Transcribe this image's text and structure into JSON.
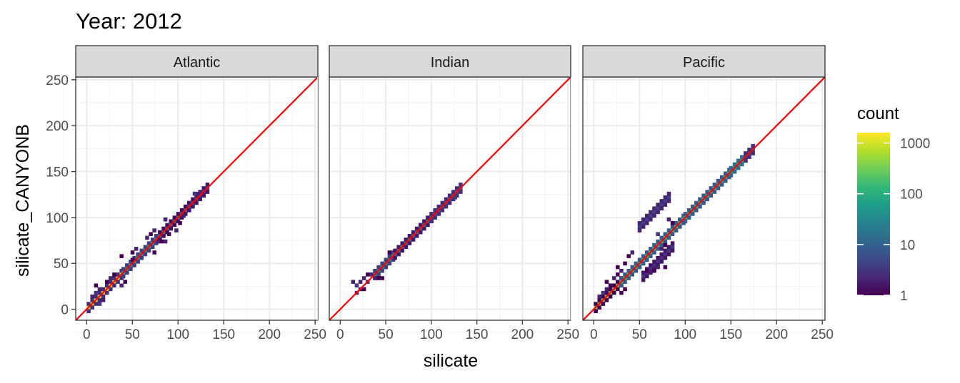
{
  "chart_data": {
    "type": "heatmap",
    "title": "Year: 2012",
    "xlabel": "silicate",
    "ylabel": "silicate_CANYONB",
    "xlim": [
      -12,
      253
    ],
    "ylim": [
      -12,
      253
    ],
    "x_ticks": [
      0,
      50,
      100,
      150,
      200,
      250
    ],
    "y_ticks": [
      0,
      50,
      100,
      150,
      200,
      250
    ],
    "grid": true,
    "reference_line": {
      "type": "identity",
      "color": "#ff0000"
    },
    "bin_width": 4,
    "legend": {
      "title": "count",
      "position": "right",
      "scale": "log10",
      "breaks": [
        1,
        10,
        100,
        1000
      ],
      "break_labels": [
        "1",
        "10",
        "100",
        "1000"
      ],
      "max": 1600,
      "colormap": "viridis",
      "colors": [
        "#440154",
        "#482878",
        "#3e4a89",
        "#31688e",
        "#26828e",
        "#1f9e89",
        "#35b779",
        "#6ece58",
        "#b5de2b",
        "#fde725"
      ]
    },
    "panels": [
      {
        "name": "Atlantic",
        "segments": [
          {
            "x0": 2,
            "x1": 40,
            "off": 0,
            "count": 800,
            "decay": 2.5
          },
          {
            "x0": 40,
            "x1": 80,
            "off": 0,
            "count": 60,
            "decay": 1.2
          },
          {
            "x0": 80,
            "x1": 112,
            "off": 0,
            "count": 20,
            "decay": 1.2
          },
          {
            "x0": 112,
            "x1": 132,
            "off": 0,
            "count": 5,
            "decay": 0.5
          }
        ],
        "scatter": [
          {
            "x": 6,
            "y": 14,
            "c": 2
          },
          {
            "x": 10,
            "y": 18,
            "c": 3
          },
          {
            "x": 14,
            "y": 22,
            "c": 2
          },
          {
            "x": 10,
            "y": 26,
            "c": 1
          },
          {
            "x": 14,
            "y": 6,
            "c": 3
          },
          {
            "x": 18,
            "y": 10,
            "c": 2
          },
          {
            "x": 22,
            "y": 30,
            "c": 1
          },
          {
            "x": 26,
            "y": 34,
            "c": 2
          },
          {
            "x": 30,
            "y": 38,
            "c": 1
          },
          {
            "x": 38,
            "y": 26,
            "c": 2
          },
          {
            "x": 42,
            "y": 30,
            "c": 1
          },
          {
            "x": 50,
            "y": 62,
            "c": 1
          },
          {
            "x": 54,
            "y": 66,
            "c": 2
          },
          {
            "x": 50,
            "y": 54,
            "c": 1
          },
          {
            "x": 66,
            "y": 78,
            "c": 2
          },
          {
            "x": 70,
            "y": 82,
            "c": 1
          },
          {
            "x": 74,
            "y": 86,
            "c": 2
          },
          {
            "x": 74,
            "y": 62,
            "c": 1
          },
          {
            "x": 78,
            "y": 74,
            "c": 2
          },
          {
            "x": 82,
            "y": 74,
            "c": 1
          },
          {
            "x": 86,
            "y": 74,
            "c": 2
          },
          {
            "x": 90,
            "y": 82,
            "c": 1
          },
          {
            "x": 98,
            "y": 86,
            "c": 2
          },
          {
            "x": 86,
            "y": 98,
            "c": 2
          },
          {
            "x": 102,
            "y": 94,
            "c": 1
          },
          {
            "x": 118,
            "y": 126,
            "c": 3
          },
          {
            "x": 122,
            "y": 126,
            "c": 2
          },
          {
            "x": 126,
            "y": 126,
            "c": 2
          },
          {
            "x": 118,
            "y": 118,
            "c": 1
          },
          {
            "x": 38,
            "y": 58,
            "c": 1
          },
          {
            "x": 106,
            "y": 102,
            "c": 2
          }
        ]
      },
      {
        "name": "Indian",
        "segments": [
          {
            "x0": 38,
            "x1": 60,
            "off": 0,
            "count": 40,
            "decay": 1.0
          },
          {
            "x0": 60,
            "x1": 100,
            "off": 0,
            "count": 25,
            "decay": 1.2
          },
          {
            "x0": 100,
            "x1": 134,
            "off": 0,
            "count": 8,
            "decay": 0.5
          }
        ],
        "scatter": [
          {
            "x": 14,
            "y": 30,
            "c": 2
          },
          {
            "x": 18,
            "y": 26,
            "c": 3
          },
          {
            "x": 22,
            "y": 30,
            "c": 2
          },
          {
            "x": 22,
            "y": 22,
            "c": 2
          },
          {
            "x": 26,
            "y": 34,
            "c": 2
          },
          {
            "x": 26,
            "y": 22,
            "c": 1
          },
          {
            "x": 30,
            "y": 38,
            "c": 1
          },
          {
            "x": 30,
            "y": 30,
            "c": 3
          },
          {
            "x": 34,
            "y": 38,
            "c": 2
          },
          {
            "x": 38,
            "y": 34,
            "c": 2
          },
          {
            "x": 42,
            "y": 34,
            "c": 1
          },
          {
            "x": 46,
            "y": 34,
            "c": 1
          },
          {
            "x": 18,
            "y": 18,
            "c": 2
          },
          {
            "x": 54,
            "y": 62,
            "c": 1
          },
          {
            "x": 126,
            "y": 122,
            "c": 3
          }
        ]
      },
      {
        "name": "Pacific",
        "segments": [
          {
            "x0": 2,
            "x1": 30,
            "off": 0,
            "count": 300,
            "decay": 2.5
          },
          {
            "x0": 30,
            "x1": 100,
            "off": 0,
            "count": 150,
            "decay": 1.3
          },
          {
            "x0": 100,
            "x1": 150,
            "off": 0,
            "count": 120,
            "decay": 1.2
          },
          {
            "x0": 150,
            "x1": 166,
            "off": 0,
            "count": 80,
            "decay": 0.8
          },
          {
            "x0": 166,
            "x1": 174,
            "off": 0,
            "count": 5,
            "decay": 0.3
          },
          {
            "x0": 50,
            "x1": 82,
            "off": 40,
            "count": 4,
            "decay": 0.3
          },
          {
            "x0": 54,
            "x1": 86,
            "off": -18,
            "count": 3,
            "decay": 0.3
          }
        ],
        "scatter": [
          {
            "x": 6,
            "y": 14,
            "c": 2
          },
          {
            "x": 10,
            "y": 18,
            "c": 3
          },
          {
            "x": 14,
            "y": 22,
            "c": 2
          },
          {
            "x": 18,
            "y": 26,
            "c": 1
          },
          {
            "x": 22,
            "y": 34,
            "c": 2
          },
          {
            "x": 26,
            "y": 38,
            "c": 1
          },
          {
            "x": 30,
            "y": 42,
            "c": 2
          },
          {
            "x": 14,
            "y": 30,
            "c": 1
          },
          {
            "x": 26,
            "y": 46,
            "c": 1
          },
          {
            "x": 38,
            "y": 58,
            "c": 1
          },
          {
            "x": 42,
            "y": 62,
            "c": 2
          },
          {
            "x": 34,
            "y": 50,
            "c": 1
          },
          {
            "x": 58,
            "y": 42,
            "c": 1
          },
          {
            "x": 62,
            "y": 42,
            "c": 2
          },
          {
            "x": 66,
            "y": 42,
            "c": 1
          },
          {
            "x": 70,
            "y": 46,
            "c": 2
          },
          {
            "x": 78,
            "y": 46,
            "c": 1
          },
          {
            "x": 74,
            "y": 66,
            "c": 2
          },
          {
            "x": 78,
            "y": 70,
            "c": 1
          },
          {
            "x": 70,
            "y": 82,
            "c": 3
          },
          {
            "x": 30,
            "y": 18,
            "c": 1
          },
          {
            "x": 34,
            "y": 22,
            "c": 1
          },
          {
            "x": 82,
            "y": 98,
            "c": 2
          },
          {
            "x": 86,
            "y": 94,
            "c": 1
          }
        ]
      }
    ]
  }
}
